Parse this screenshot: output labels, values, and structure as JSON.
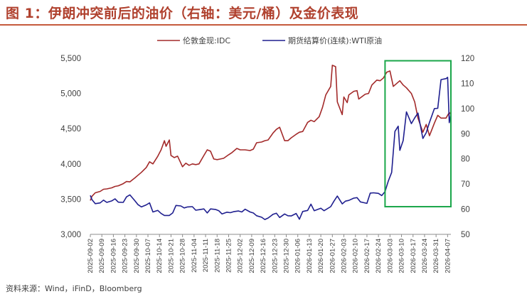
{
  "figure": {
    "title": "图 1：伊朗冲突前后的油价（右轴：美元/桶）及金价表现",
    "source": "资料来源：Wind，iFinD，Bloomberg"
  },
  "chart_data": {
    "type": "line",
    "legend_position": "top",
    "grid": false,
    "y_left": {
      "min": 3000,
      "max": 5500,
      "ticks": [
        "3,000",
        "3,500",
        "4,000",
        "4,500",
        "5,000",
        "5,500"
      ]
    },
    "y_right": {
      "min": 50,
      "max": 120,
      "ticks": [
        "50",
        "60",
        "70",
        "80",
        "90",
        "100",
        "110",
        "120"
      ]
    },
    "x_range": [
      "2025-09-02",
      "2026-04-09"
    ],
    "x_ticks": [
      "2025-09-02",
      "2025-09-09",
      "2025-09-16",
      "2025-09-23",
      "2025-09-30",
      "2025-10-07",
      "2025-10-14",
      "2025-10-21",
      "2025-10-28",
      "2025-11-04",
      "2025-11-11",
      "2025-11-18",
      "2025-11-25",
      "2025-12-02",
      "2025-12-09",
      "2025-12-16",
      "2025-12-23",
      "2025-12-30",
      "2026-01-06",
      "2026-01-13",
      "2026-01-20",
      "2026-01-27",
      "2026-02-03",
      "2026-02-10",
      "2026-02-17",
      "2026-02-24",
      "2026-03-03",
      "2026-03-10",
      "2026-03-17",
      "2026-03-24",
      "2026-03-31",
      "2026-04-07"
    ],
    "highlight_box": {
      "from": "2026-02-28",
      "to": "2026-04-09",
      "color": "#1aa64a"
    },
    "series": [
      {
        "name": "伦敦金现:IDC",
        "axis": "left",
        "color": "#a32a2a",
        "points": [
          [
            "2025-09-02",
            3480
          ],
          [
            "2025-09-03",
            3540
          ],
          [
            "2025-09-05",
            3590
          ],
          [
            "2025-09-08",
            3610
          ],
          [
            "2025-09-10",
            3640
          ],
          [
            "2025-09-12",
            3645
          ],
          [
            "2025-09-15",
            3660
          ],
          [
            "2025-09-17",
            3680
          ],
          [
            "2025-09-19",
            3690
          ],
          [
            "2025-09-22",
            3720
          ],
          [
            "2025-09-24",
            3750
          ],
          [
            "2025-09-26",
            3745
          ],
          [
            "2025-09-29",
            3800
          ],
          [
            "2025-10-01",
            3840
          ],
          [
            "2025-10-03",
            3880
          ],
          [
            "2025-10-06",
            3950
          ],
          [
            "2025-10-08",
            4030
          ],
          [
            "2025-10-10",
            4000
          ],
          [
            "2025-10-13",
            4110
          ],
          [
            "2025-10-15",
            4200
          ],
          [
            "2025-10-17",
            4330
          ],
          [
            "2025-10-18",
            4250
          ],
          [
            "2025-10-20",
            4340
          ],
          [
            "2025-10-21",
            4120
          ],
          [
            "2025-10-23",
            4090
          ],
          [
            "2025-10-25",
            4110
          ],
          [
            "2025-10-27",
            4010
          ],
          [
            "2025-10-28",
            3960
          ],
          [
            "2025-10-30",
            4010
          ],
          [
            "2025-11-01",
            3980
          ],
          [
            "2025-11-03",
            4000
          ],
          [
            "2025-11-05",
            3990
          ],
          [
            "2025-11-07",
            4000
          ],
          [
            "2025-11-10",
            4120
          ],
          [
            "2025-11-12",
            4200
          ],
          [
            "2025-11-14",
            4180
          ],
          [
            "2025-11-16",
            4070
          ],
          [
            "2025-11-18",
            4060
          ],
          [
            "2025-11-20",
            4070
          ],
          [
            "2025-11-22",
            4080
          ],
          [
            "2025-11-25",
            4130
          ],
          [
            "2025-11-27",
            4160
          ],
          [
            "2025-11-30",
            4220
          ],
          [
            "2025-12-02",
            4200
          ],
          [
            "2025-12-05",
            4200
          ],
          [
            "2025-12-08",
            4190
          ],
          [
            "2025-12-10",
            4210
          ],
          [
            "2025-12-12",
            4300
          ],
          [
            "2025-12-15",
            4310
          ],
          [
            "2025-12-17",
            4330
          ],
          [
            "2025-12-19",
            4340
          ],
          [
            "2025-12-22",
            4440
          ],
          [
            "2025-12-24",
            4490
          ],
          [
            "2025-12-26",
            4520
          ],
          [
            "2025-12-29",
            4330
          ],
          [
            "2025-12-31",
            4330
          ],
          [
            "2026-01-02",
            4370
          ],
          [
            "2026-01-05",
            4420
          ],
          [
            "2026-01-07",
            4450
          ],
          [
            "2026-01-09",
            4460
          ],
          [
            "2026-01-12",
            4590
          ],
          [
            "2026-01-14",
            4620
          ],
          [
            "2026-01-16",
            4600
          ],
          [
            "2026-01-19",
            4670
          ],
          [
            "2026-01-21",
            4800
          ],
          [
            "2026-01-23",
            4980
          ],
          [
            "2026-01-26",
            5100
          ],
          [
            "2026-01-27",
            5400
          ],
          [
            "2026-01-29",
            5380
          ],
          [
            "2026-01-30",
            4880
          ],
          [
            "2026-02-02",
            4700
          ],
          [
            "2026-02-03",
            4950
          ],
          [
            "2026-02-05",
            4870
          ],
          [
            "2026-02-06",
            4980
          ],
          [
            "2026-02-09",
            5030
          ],
          [
            "2026-02-11",
            5040
          ],
          [
            "2026-02-12",
            4920
          ],
          [
            "2026-02-16",
            4990
          ],
          [
            "2026-02-18",
            5000
          ],
          [
            "2026-02-20",
            5120
          ],
          [
            "2026-02-23",
            5190
          ],
          [
            "2026-02-25",
            5180
          ],
          [
            "2026-02-27",
            5220
          ],
          [
            "2026-03-01",
            5300
          ],
          [
            "2026-03-03",
            5320
          ],
          [
            "2026-03-05",
            5100
          ],
          [
            "2026-03-07",
            5140
          ],
          [
            "2026-03-09",
            5180
          ],
          [
            "2026-03-11",
            5120
          ],
          [
            "2026-03-13",
            5080
          ],
          [
            "2026-03-16",
            5000
          ],
          [
            "2026-03-18",
            4880
          ],
          [
            "2026-03-20",
            4650
          ],
          [
            "2026-03-23",
            4450
          ],
          [
            "2026-03-25",
            4560
          ],
          [
            "2026-03-27",
            4400
          ],
          [
            "2026-03-30",
            4580
          ],
          [
            "2026-04-01",
            4690
          ],
          [
            "2026-04-03",
            4650
          ],
          [
            "2026-04-06",
            4650
          ],
          [
            "2026-04-08",
            4730
          ],
          [
            "2026-04-09",
            4700
          ]
        ]
      },
      {
        "name": "期货结算价(连续):WTI原油",
        "axis": "right",
        "color": "#1f1f8f",
        "points": [
          [
            "2025-09-02",
            65.5
          ],
          [
            "2025-09-03",
            63.8
          ],
          [
            "2025-09-05",
            62.2
          ],
          [
            "2025-09-08",
            62.5
          ],
          [
            "2025-09-10",
            63.6
          ],
          [
            "2025-09-12",
            62.7
          ],
          [
            "2025-09-15",
            63.3
          ],
          [
            "2025-09-17",
            64.1
          ],
          [
            "2025-09-19",
            62.8
          ],
          [
            "2025-09-22",
            62.7
          ],
          [
            "2025-09-24",
            64.9
          ],
          [
            "2025-09-26",
            65.7
          ],
          [
            "2025-09-29",
            63.4
          ],
          [
            "2025-10-01",
            61.8
          ],
          [
            "2025-10-03",
            60.9
          ],
          [
            "2025-10-06",
            61.7
          ],
          [
            "2025-10-08",
            62.5
          ],
          [
            "2025-10-10",
            58.9
          ],
          [
            "2025-10-13",
            59.5
          ],
          [
            "2025-10-15",
            58.3
          ],
          [
            "2025-10-17",
            57.5
          ],
          [
            "2025-10-20",
            57.5
          ],
          [
            "2025-10-22",
            58.5
          ],
          [
            "2025-10-24",
            61.5
          ],
          [
            "2025-10-27",
            61.3
          ],
          [
            "2025-10-29",
            60.5
          ],
          [
            "2025-10-31",
            60.9
          ],
          [
            "2025-11-03",
            61.0
          ],
          [
            "2025-11-05",
            59.6
          ],
          [
            "2025-11-07",
            59.8
          ],
          [
            "2025-11-10",
            60.1
          ],
          [
            "2025-11-12",
            58.5
          ],
          [
            "2025-11-14",
            60.1
          ],
          [
            "2025-11-17",
            59.9
          ],
          [
            "2025-11-19",
            59.4
          ],
          [
            "2025-11-21",
            58.1
          ],
          [
            "2025-11-24",
            58.8
          ],
          [
            "2025-11-26",
            58.6
          ],
          [
            "2025-11-28",
            59.0
          ],
          [
            "2025-12-01",
            59.3
          ],
          [
            "2025-12-03",
            58.9
          ],
          [
            "2025-12-05",
            60.0
          ],
          [
            "2025-12-08",
            58.9
          ],
          [
            "2025-12-10",
            58.5
          ],
          [
            "2025-12-12",
            57.4
          ],
          [
            "2025-12-15",
            56.8
          ],
          [
            "2025-12-17",
            55.9
          ],
          [
            "2025-12-19",
            56.5
          ],
          [
            "2025-12-22",
            58.0
          ],
          [
            "2025-12-24",
            58.4
          ],
          [
            "2025-12-26",
            56.7
          ],
          [
            "2025-12-29",
            58.1
          ],
          [
            "2025-12-31",
            57.4
          ],
          [
            "2026-01-02",
            57.3
          ],
          [
            "2026-01-05",
            58.3
          ],
          [
            "2026-01-07",
            56.0
          ],
          [
            "2026-01-09",
            59.1
          ],
          [
            "2026-01-12",
            59.5
          ],
          [
            "2026-01-14",
            62.0
          ],
          [
            "2026-01-16",
            59.4
          ],
          [
            "2026-01-20",
            60.4
          ],
          [
            "2026-01-22",
            59.4
          ],
          [
            "2026-01-26",
            61.0
          ],
          [
            "2026-01-28",
            63.2
          ],
          [
            "2026-01-30",
            65.2
          ],
          [
            "2026-02-02",
            62.1
          ],
          [
            "2026-02-04",
            63.2
          ],
          [
            "2026-02-06",
            63.5
          ],
          [
            "2026-02-09",
            64.4
          ],
          [
            "2026-02-11",
            64.6
          ],
          [
            "2026-02-13",
            62.9
          ],
          [
            "2026-02-17",
            62.3
          ],
          [
            "2026-02-19",
            66.4
          ],
          [
            "2026-02-21",
            66.5
          ],
          [
            "2026-02-24",
            66.3
          ],
          [
            "2026-02-26",
            65.4
          ],
          [
            "2026-02-28",
            67.0
          ],
          [
            "2026-03-02",
            71.2
          ],
          [
            "2026-03-04",
            74.6
          ],
          [
            "2026-03-06",
            90.9
          ],
          [
            "2026-03-08",
            93.0
          ],
          [
            "2026-03-09",
            83.4
          ],
          [
            "2026-03-11",
            87.3
          ],
          [
            "2026-03-13",
            98.7
          ],
          [
            "2026-03-16",
            94.0
          ],
          [
            "2026-03-18",
            96.3
          ],
          [
            "2026-03-20",
            98.2
          ],
          [
            "2026-03-23",
            88.1
          ],
          [
            "2026-03-25",
            90.4
          ],
          [
            "2026-03-27",
            94.5
          ],
          [
            "2026-03-30",
            100.0
          ],
          [
            "2026-04-01",
            100.1
          ],
          [
            "2026-04-03",
            111.5
          ],
          [
            "2026-04-06",
            111.9
          ],
          [
            "2026-04-07",
            112.4
          ],
          [
            "2026-04-08",
            94.4
          ],
          [
            "2026-04-09",
            97.9
          ]
        ]
      }
    ]
  }
}
